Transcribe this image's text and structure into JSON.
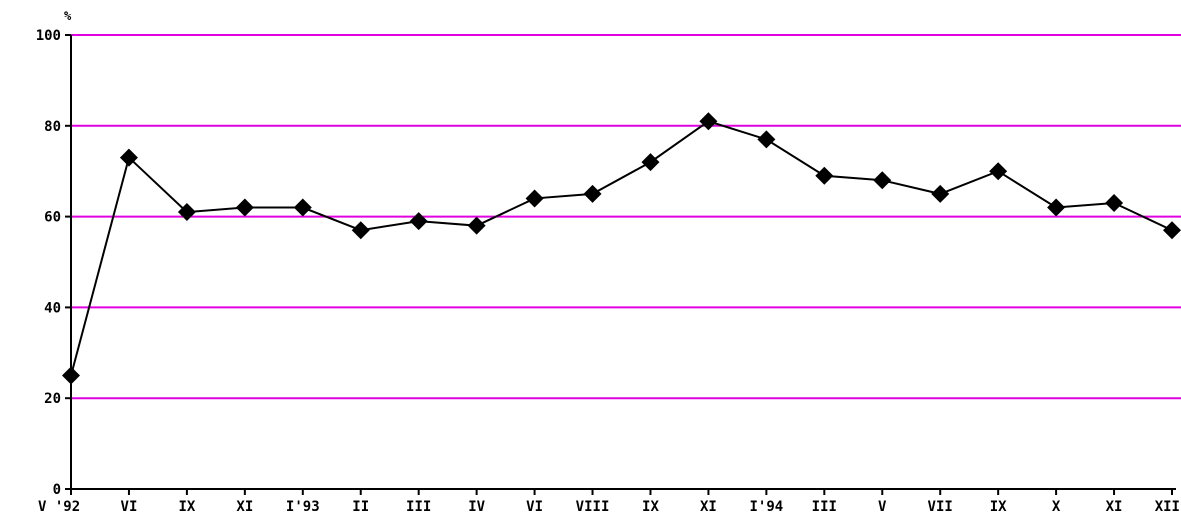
{
  "chart_data": {
    "type": "line",
    "unit_label": "%",
    "ylim": [
      0,
      100
    ],
    "y_ticks": [
      0,
      20,
      40,
      60,
      80,
      100
    ],
    "grid": true,
    "grid_color": "#e000e0",
    "line_color": "#000000",
    "marker_color": "#000000",
    "marker_shape": "diamond",
    "categories": [
      "V '92",
      "VI",
      "IX",
      "XI",
      "I'93",
      "II",
      "III",
      "IV",
      "VI",
      "VIII",
      "IX",
      "XI",
      "I'94",
      "III",
      "V",
      "VII",
      "IX",
      "X",
      "XI",
      "XII"
    ],
    "series": [
      {
        "values": [
          25,
          73,
          61,
          62,
          62,
          57,
          59,
          58,
          64,
          65,
          72,
          81,
          77,
          69,
          68,
          65,
          70,
          62,
          63,
          57
        ]
      }
    ]
  }
}
